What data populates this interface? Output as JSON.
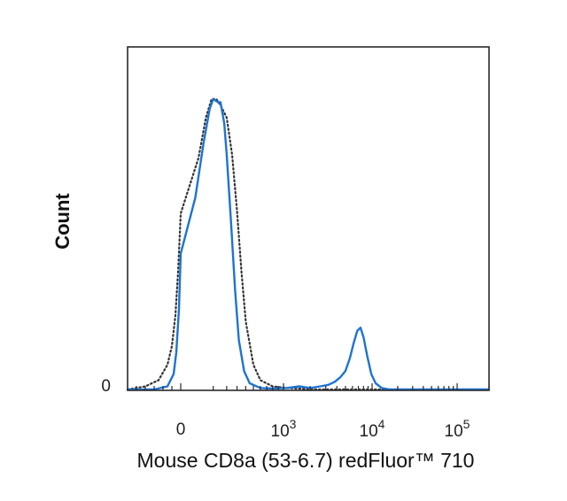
{
  "chart_data": {
    "type": "line",
    "xlabel": "Mouse CD8a (53-6.7) redFluor™ 710",
    "ylabel": "Count",
    "x_scale": "biexponential",
    "x_ticks": [
      {
        "value": 0,
        "label": "0"
      },
      {
        "value": 1000,
        "base": "10",
        "exp": "3"
      },
      {
        "value": 10000,
        "base": "10",
        "exp": "4"
      },
      {
        "value": 100000,
        "base": "10",
        "exp": "5"
      }
    ],
    "y_ticks": [
      {
        "value": 0,
        "label": "0"
      }
    ],
    "xlim": [
      -600,
      200000
    ],
    "ylim": [
      0,
      100
    ],
    "grid": false,
    "legend": "none",
    "series": [
      {
        "style": "solid",
        "color": "#1e73d2",
        "x": [
          -600,
          -300,
          -150,
          -80,
          -50,
          -20,
          0,
          20,
          50,
          80,
          100,
          130,
          150,
          180,
          200,
          240,
          280,
          320,
          380,
          450,
          600,
          800,
          1100,
          1500,
          2000,
          2600,
          3200,
          3800,
          4400,
          5000,
          5600,
          6200,
          6800,
          7400,
          8000,
          8800,
          9800,
          11000,
          13000,
          16000,
          20000,
          30000,
          50000,
          80000,
          120000,
          200000
        ],
        "y": [
          0,
          0,
          1,
          5,
          12,
          26,
          44,
          62,
          80,
          91,
          94,
          93,
          93,
          86,
          76,
          54,
          32,
          16,
          6,
          2,
          0.5,
          0.3,
          0.5,
          1,
          0.5,
          1,
          1.5,
          2.5,
          4,
          6,
          10,
          15,
          19,
          20,
          17,
          11,
          5,
          2,
          0.5,
          0,
          0,
          0,
          0,
          0,
          0,
          0
        ]
      },
      {
        "style": "dotted",
        "color": "#333333",
        "x": [
          -600,
          -400,
          -250,
          -150,
          -100,
          -60,
          -30,
          0,
          30,
          60,
          90,
          120,
          150,
          200,
          250,
          300,
          350,
          400,
          500,
          600,
          800,
          1100,
          1500,
          2000,
          3000,
          5000,
          10000,
          50000,
          200000
        ],
        "y": [
          0,
          1,
          3,
          8,
          14,
          24,
          38,
          57,
          75,
          88,
          94,
          94,
          92,
          88,
          76,
          58,
          38,
          22,
          8,
          3,
          1,
          0.5,
          0.3,
          0,
          0,
          0,
          0,
          0,
          0
        ]
      }
    ]
  }
}
